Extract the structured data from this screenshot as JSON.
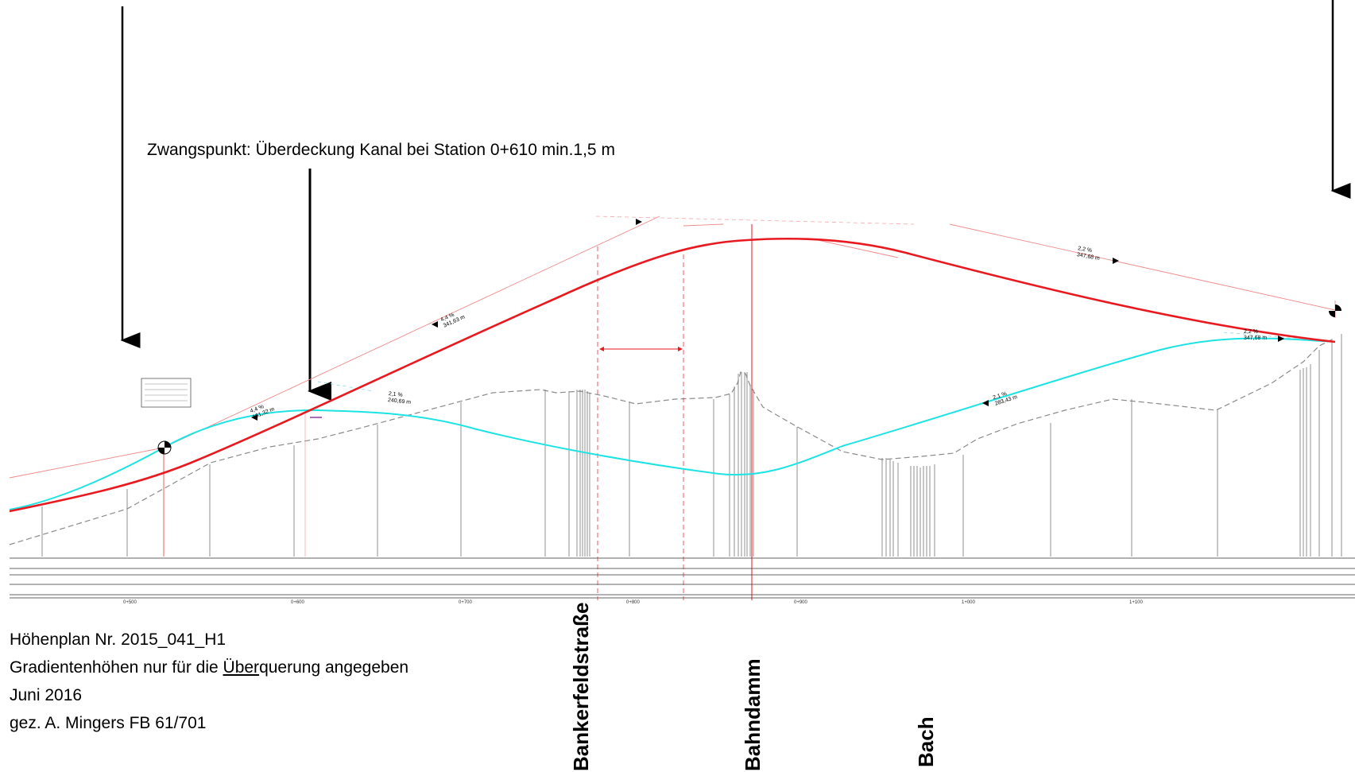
{
  "annotation": {
    "constraint_point": "Zwangspunkt: Überdeckung Kanal bei Station 0+610 min.1,5 m"
  },
  "notes": {
    "plan_number": "Höhenplan Nr. 2015_041_H1",
    "gradient_prefix": "Gradientenhöhen nur für die ",
    "gradient_underlined": "Über",
    "gradient_suffix": "querung angegeben",
    "date": "Juni 2016",
    "signed": "gez. A. Mingers FB 61/701"
  },
  "landmarks": {
    "road": "Bankerfeldstraße",
    "embankment": "Bahndamm",
    "stream": "Bach"
  },
  "stations": [
    "0+500",
    "0+600",
    "0+700",
    "0+800",
    "0+900",
    "1+000",
    "1+100"
  ],
  "gradient_labels": [
    {
      "percent": "4,4 %",
      "length": "161,32 m"
    },
    {
      "percent": "4,4 %",
      "length": "341,63 m"
    },
    {
      "percent": "2,1 %",
      "length": "240,69 m"
    },
    {
      "percent": "2,1 %",
      "length": "283,43 m"
    },
    {
      "percent": "2,2 %",
      "length": "347,68 m"
    },
    {
      "percent": "2,2 %",
      "length": "347,68 m"
    }
  ],
  "colors": {
    "design_line": "#e8191f",
    "alternative_line": "#1ee3e3",
    "terrain": "#8a8a8a"
  }
}
